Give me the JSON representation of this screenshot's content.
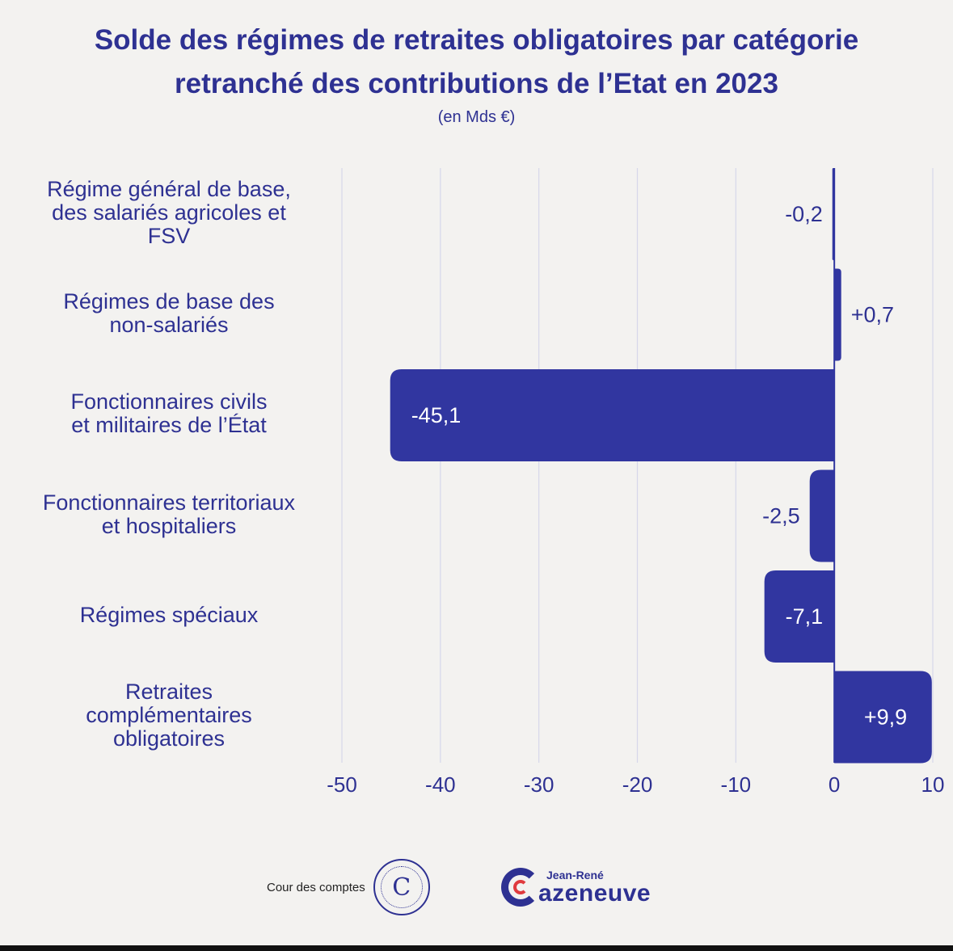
{
  "title_line1": "Solde des régimes de retraites obligatoires par catégorie",
  "title_line2": "retranché des contributions de l’Etat en 2023",
  "subtitle": "(en Mds €)",
  "colors": {
    "bar": "#3136a0",
    "text": "#2e3192",
    "grid": "#d6d7ea",
    "background": "#f3f2f0"
  },
  "chart_data": {
    "type": "bar",
    "orientation": "horizontal",
    "title": "Solde des régimes de retraites obligatoires par catégorie retranché des contributions de l’Etat en 2023",
    "unit": "Mds €",
    "xlim": [
      -50,
      10
    ],
    "xticks": [
      "-50",
      "-40",
      "-30",
      "-20",
      "-10",
      "0",
      "10"
    ],
    "xtick_values": [
      -50,
      -40,
      -30,
      -20,
      -10,
      0,
      10
    ],
    "categories": [
      [
        "Régime général de base,",
        "des salariés agricoles et",
        "FSV"
      ],
      [
        "Régimes de base des",
        "non-salariés"
      ],
      [
        "Fonctionnaires civils",
        "et militaires de l’État"
      ],
      [
        "Fonctionnaires territoriaux",
        "et hospitaliers"
      ],
      [
        "Régimes spéciaux"
      ],
      [
        "Retraites",
        "complémentaires",
        "obligatoires"
      ]
    ],
    "values": [
      -0.2,
      0.7,
      -45.1,
      -2.5,
      -7.1,
      9.9
    ],
    "value_labels": [
      "-0,2",
      "+0,7",
      "-45,1",
      "-2,5",
      "-7,1",
      "+9,9"
    ],
    "grid": true
  },
  "footer": {
    "cdc_text": "Cour des comptes",
    "cdc_logo_letter": "C",
    "jrc_first": "Jean-René",
    "jrc_last": "azeneuve"
  }
}
